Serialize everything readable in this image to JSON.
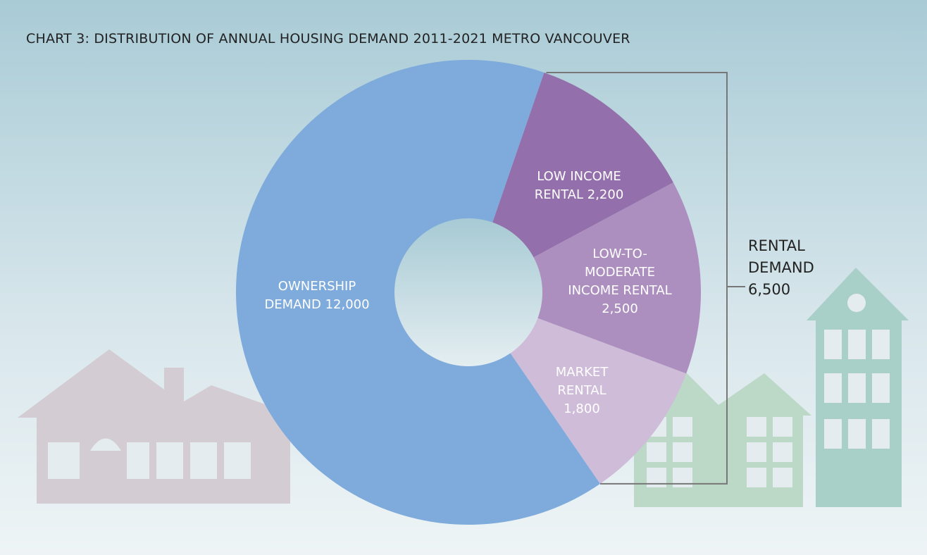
{
  "chart_data": {
    "type": "donut",
    "title": "CHART 3:  DISTRIBUTION OF ANNUAL HOUSING DEMAND 2011-2021 METRO VANCOUVER",
    "categories": [
      "LOW INCOME RENTAL",
      "LOW-TO-MODERATE INCOME RENTAL",
      "MARKET RENTAL",
      "OWNERSHIP DEMAND"
    ],
    "values": [
      2200,
      2500,
      1800,
      12000
    ],
    "value_labels": [
      "2,200",
      "2,500",
      "1,800",
      "12,000"
    ],
    "colors": [
      "#936fab",
      "#ac8fbf",
      "#cfbcd9",
      "#7eabdc"
    ],
    "annotation": {
      "text": "RENTAL DEMAND",
      "value": 6500,
      "value_label": "6,500"
    }
  }
}
